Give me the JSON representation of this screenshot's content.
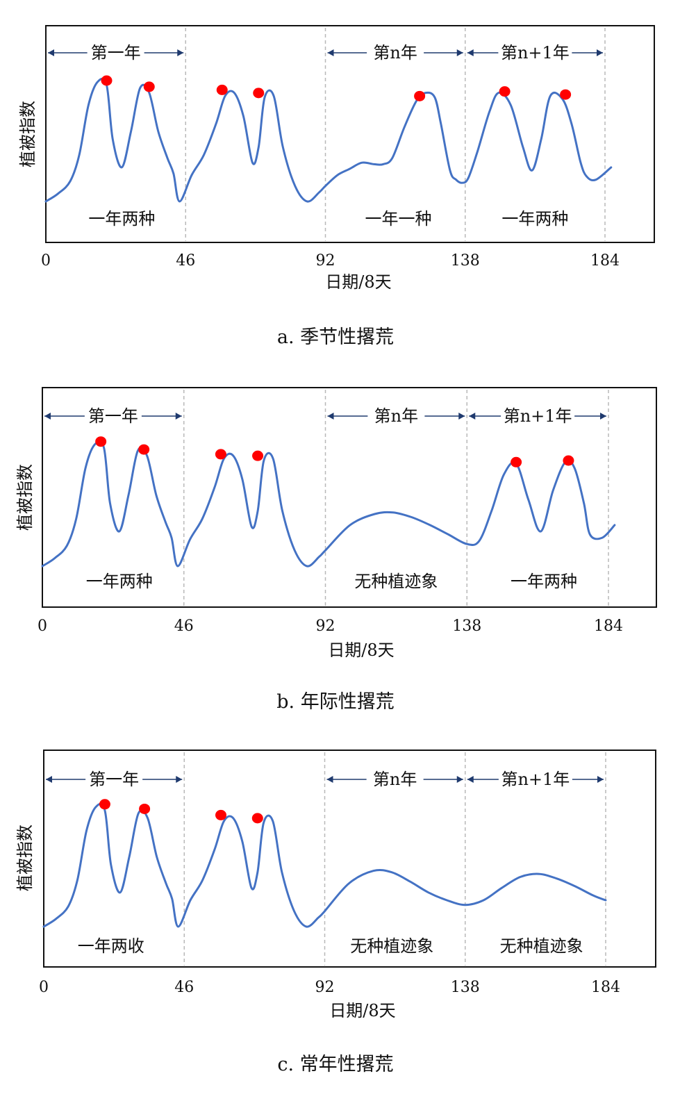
{
  "chart_data": [
    {
      "type": "line",
      "caption": "a. 季节性撂荒",
      "xlabel": "日期/8天",
      "ylabel": "植被指数",
      "xlim": [
        0,
        184
      ],
      "ylim": [
        0,
        1
      ],
      "x_ticks": [
        "0",
        "46",
        "92",
        "138",
        "184"
      ],
      "grid": false,
      "period_labels": [
        {
          "text": "第一年",
          "start": 0,
          "end": 46
        },
        {
          "text": "第n年",
          "start": 92,
          "end": 138
        },
        {
          "text": "第n+1年",
          "start": 138,
          "end": 184
        }
      ],
      "region_labels": [
        {
          "text": "一年两种",
          "x": 25
        },
        {
          "text": "一年一种",
          "x": 116
        },
        {
          "text": "一年两种",
          "x": 161
        }
      ],
      "series": [
        {
          "x": [
            0,
            4,
            8,
            11,
            14,
            17,
            20,
            22,
            25,
            28,
            31,
            34,
            37,
            40,
            42,
            44,
            48,
            52,
            56,
            59,
            62,
            65,
            68,
            70,
            72,
            75,
            78,
            82,
            86,
            90,
            92,
            96,
            100,
            104,
            108,
            111,
            114,
            118,
            122,
            125,
            128,
            130,
            133,
            135,
            137,
            139,
            142,
            146,
            149,
            153,
            157,
            160,
            163,
            166,
            170,
            173,
            176,
            178,
            181,
            186
          ],
          "y": [
            0.2,
            0.25,
            0.33,
            0.5,
            0.82,
            0.97,
            0.95,
            0.6,
            0.42,
            0.65,
            0.93,
            0.9,
            0.65,
            0.48,
            0.38,
            0.2,
            0.37,
            0.5,
            0.7,
            0.88,
            0.9,
            0.75,
            0.45,
            0.55,
            0.87,
            0.88,
            0.55,
            0.3,
            0.2,
            0.26,
            0.3,
            0.37,
            0.41,
            0.45,
            0.44,
            0.44,
            0.48,
            0.68,
            0.85,
            0.9,
            0.87,
            0.7,
            0.4,
            0.34,
            0.32,
            0.35,
            0.52,
            0.78,
            0.9,
            0.82,
            0.55,
            0.4,
            0.6,
            0.88,
            0.86,
            0.7,
            0.45,
            0.36,
            0.34,
            0.42
          ]
        }
      ],
      "peaks": [
        {
          "x": 20,
          "y": 0.97
        },
        {
          "x": 34,
          "y": 0.93
        },
        {
          "x": 58,
          "y": 0.91
        },
        {
          "x": 70,
          "y": 0.89
        },
        {
          "x": 123,
          "y": 0.87
        },
        {
          "x": 151,
          "y": 0.9
        },
        {
          "x": 171,
          "y": 0.88
        }
      ]
    },
    {
      "type": "line",
      "caption": "b. 年际性撂荒",
      "xlabel": "日期/8天",
      "ylabel": "植被指数",
      "xlim": [
        0,
        184
      ],
      "ylim": [
        0,
        1
      ],
      "x_ticks": [
        "0",
        "46",
        "92",
        "138",
        "184"
      ],
      "grid": false,
      "period_labels": [
        {
          "text": "第一年",
          "start": 0,
          "end": 46
        },
        {
          "text": "第n年",
          "start": 92,
          "end": 138
        },
        {
          "text": "第n+1年",
          "start": 138,
          "end": 184
        }
      ],
      "region_labels": [
        {
          "text": "一年两种",
          "x": 25
        },
        {
          "text": "无种植迹象",
          "x": 115
        },
        {
          "text": "一年两种",
          "x": 163
        }
      ],
      "series": [
        {
          "x": [
            0,
            4,
            8,
            11,
            14,
            17,
            20,
            22,
            25,
            28,
            31,
            34,
            37,
            40,
            42,
            44,
            48,
            52,
            56,
            59,
            62,
            65,
            68,
            70,
            72,
            75,
            78,
            82,
            86,
            90,
            92,
            100,
            108,
            114,
            120,
            126,
            132,
            138,
            142,
            146,
            150,
            154,
            158,
            162,
            166,
            170,
            173,
            176,
            178,
            182,
            186
          ],
          "y": [
            0.2,
            0.25,
            0.33,
            0.5,
            0.82,
            0.97,
            0.95,
            0.6,
            0.42,
            0.65,
            0.93,
            0.9,
            0.65,
            0.48,
            0.38,
            0.2,
            0.37,
            0.5,
            0.7,
            0.88,
            0.9,
            0.75,
            0.45,
            0.55,
            0.87,
            0.88,
            0.55,
            0.3,
            0.2,
            0.26,
            0.3,
            0.46,
            0.53,
            0.54,
            0.51,
            0.46,
            0.4,
            0.34,
            0.36,
            0.55,
            0.78,
            0.85,
            0.62,
            0.42,
            0.68,
            0.86,
            0.82,
            0.6,
            0.4,
            0.38,
            0.46
          ]
        }
      ],
      "peaks": [
        {
          "x": 19,
          "y": 0.98
        },
        {
          "x": 33,
          "y": 0.93
        },
        {
          "x": 58,
          "y": 0.9
        },
        {
          "x": 70,
          "y": 0.89
        },
        {
          "x": 154,
          "y": 0.85
        },
        {
          "x": 171,
          "y": 0.86
        }
      ]
    },
    {
      "type": "line",
      "caption": "c. 常年性撂荒",
      "xlabel": "日期/8天",
      "ylabel": "植被指数",
      "xlim": [
        0,
        184
      ],
      "ylim": [
        0,
        1
      ],
      "x_ticks": [
        "0",
        "46",
        "92",
        "138",
        "184"
      ],
      "grid": false,
      "period_labels": [
        {
          "text": "第一年",
          "start": 0,
          "end": 46
        },
        {
          "text": "第n年",
          "start": 92,
          "end": 138
        },
        {
          "text": "第n+1年",
          "start": 138,
          "end": 184
        }
      ],
      "region_labels": [
        {
          "text": "一年两收",
          "x": 22
        },
        {
          "text": "无种植迹象",
          "x": 114
        },
        {
          "text": "无种植迹象",
          "x": 163
        }
      ],
      "series": [
        {
          "x": [
            0,
            4,
            8,
            11,
            14,
            17,
            20,
            22,
            25,
            28,
            31,
            34,
            37,
            40,
            42,
            44,
            48,
            52,
            56,
            59,
            62,
            65,
            68,
            70,
            72,
            75,
            78,
            82,
            86,
            90,
            92,
            100,
            108,
            114,
            120,
            126,
            132,
            138,
            144,
            150,
            156,
            162,
            168,
            174,
            180,
            184
          ],
          "y": [
            0.2,
            0.25,
            0.33,
            0.5,
            0.82,
            0.97,
            0.95,
            0.6,
            0.42,
            0.65,
            0.93,
            0.9,
            0.65,
            0.48,
            0.38,
            0.2,
            0.37,
            0.5,
            0.7,
            0.88,
            0.9,
            0.75,
            0.45,
            0.55,
            0.87,
            0.88,
            0.55,
            0.3,
            0.2,
            0.26,
            0.3,
            0.48,
            0.56,
            0.55,
            0.49,
            0.42,
            0.37,
            0.34,
            0.37,
            0.45,
            0.52,
            0.54,
            0.51,
            0.46,
            0.4,
            0.37
          ]
        }
      ],
      "peaks": [
        {
          "x": 20,
          "y": 0.98
        },
        {
          "x": 33,
          "y": 0.95
        },
        {
          "x": 58,
          "y": 0.91
        },
        {
          "x": 70,
          "y": 0.89
        }
      ]
    }
  ]
}
